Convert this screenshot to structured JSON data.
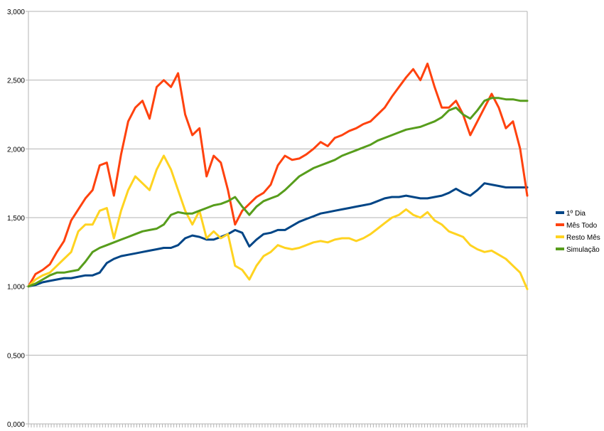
{
  "chart_data": {
    "type": "line",
    "title": "",
    "xlabel": "",
    "ylabel": "",
    "ylim": [
      0,
      3
    ],
    "yticks": [
      "0,000",
      "0,500",
      "1,000",
      "1,500",
      "2,000",
      "2,500",
      "3,000"
    ],
    "ytick_values": [
      0,
      0.5,
      1,
      1.5,
      2,
      2.5,
      3
    ],
    "grid": true,
    "legend_position": "right",
    "x": [
      0,
      10,
      20,
      30,
      40,
      50,
      60,
      70,
      80,
      90,
      100,
      110,
      120,
      130,
      140,
      150,
      160,
      170,
      180,
      190,
      200,
      210,
      220,
      230,
      240,
      250,
      260,
      270,
      280,
      290,
      300,
      310,
      320,
      330,
      340,
      350,
      360,
      370,
      380,
      390,
      400,
      410,
      420,
      430,
      440,
      450,
      460,
      470,
      480,
      490,
      500,
      510,
      520,
      530,
      540,
      550,
      560,
      570,
      580,
      590,
      600,
      610,
      620,
      630,
      640,
      650,
      660,
      670,
      680,
      690,
      700
    ],
    "series": [
      {
        "name": "1º Dia",
        "color": "#004586",
        "values": [
          1.0,
          1.01,
          1.03,
          1.04,
          1.05,
          1.06,
          1.06,
          1.07,
          1.08,
          1.08,
          1.1,
          1.17,
          1.2,
          1.22,
          1.23,
          1.24,
          1.25,
          1.26,
          1.27,
          1.28,
          1.28,
          1.3,
          1.35,
          1.37,
          1.36,
          1.34,
          1.34,
          1.36,
          1.38,
          1.41,
          1.39,
          1.29,
          1.34,
          1.38,
          1.39,
          1.41,
          1.41,
          1.44,
          1.47,
          1.49,
          1.51,
          1.53,
          1.54,
          1.55,
          1.56,
          1.57,
          1.58,
          1.59,
          1.6,
          1.62,
          1.64,
          1.65,
          1.65,
          1.66,
          1.65,
          1.64,
          1.64,
          1.65,
          1.66,
          1.68,
          1.71,
          1.68,
          1.66,
          1.7,
          1.75,
          1.74,
          1.73,
          1.72,
          1.72,
          1.72,
          1.72
        ]
      },
      {
        "name": "Mês Todo",
        "color": "#ff420e",
        "values": [
          1.0,
          1.09,
          1.12,
          1.16,
          1.25,
          1.33,
          1.48,
          1.56,
          1.64,
          1.7,
          1.88,
          1.9,
          1.66,
          1.96,
          2.2,
          2.3,
          2.35,
          2.22,
          2.45,
          2.5,
          2.45,
          2.55,
          2.25,
          2.1,
          2.15,
          1.8,
          1.95,
          1.9,
          1.7,
          1.45,
          1.55,
          1.6,
          1.65,
          1.68,
          1.74,
          1.88,
          1.95,
          1.92,
          1.93,
          1.96,
          2.0,
          2.05,
          2.02,
          2.08,
          2.1,
          2.13,
          2.15,
          2.18,
          2.2,
          2.25,
          2.3,
          2.38,
          2.45,
          2.52,
          2.58,
          2.5,
          2.62,
          2.45,
          2.3,
          2.3,
          2.35,
          2.25,
          2.1,
          2.2,
          2.3,
          2.4,
          2.3,
          2.15,
          2.2,
          2.0,
          1.66
        ]
      },
      {
        "name": "Resto Mês",
        "color": "#ffd320",
        "values": [
          1.0,
          1.05,
          1.08,
          1.1,
          1.15,
          1.2,
          1.25,
          1.4,
          1.45,
          1.45,
          1.55,
          1.57,
          1.35,
          1.55,
          1.7,
          1.8,
          1.75,
          1.7,
          1.85,
          1.95,
          1.85,
          1.7,
          1.55,
          1.45,
          1.55,
          1.35,
          1.4,
          1.35,
          1.38,
          1.15,
          1.12,
          1.05,
          1.15,
          1.22,
          1.25,
          1.3,
          1.28,
          1.27,
          1.28,
          1.3,
          1.32,
          1.33,
          1.32,
          1.34,
          1.35,
          1.35,
          1.33,
          1.35,
          1.38,
          1.42,
          1.46,
          1.5,
          1.52,
          1.56,
          1.52,
          1.5,
          1.54,
          1.48,
          1.45,
          1.4,
          1.38,
          1.36,
          1.3,
          1.27,
          1.25,
          1.26,
          1.23,
          1.2,
          1.15,
          1.1,
          0.98
        ]
      },
      {
        "name": "Simulação",
        "color": "#579d1c",
        "values": [
          1.0,
          1.02,
          1.05,
          1.08,
          1.1,
          1.1,
          1.11,
          1.12,
          1.18,
          1.25,
          1.28,
          1.3,
          1.32,
          1.34,
          1.36,
          1.38,
          1.4,
          1.41,
          1.42,
          1.45,
          1.52,
          1.54,
          1.53,
          1.53,
          1.55,
          1.57,
          1.59,
          1.6,
          1.62,
          1.65,
          1.58,
          1.52,
          1.58,
          1.62,
          1.64,
          1.66,
          1.7,
          1.75,
          1.8,
          1.83,
          1.86,
          1.88,
          1.9,
          1.92,
          1.95,
          1.97,
          1.99,
          2.01,
          2.03,
          2.06,
          2.08,
          2.1,
          2.12,
          2.14,
          2.15,
          2.16,
          2.18,
          2.2,
          2.23,
          2.28,
          2.3,
          2.25,
          2.22,
          2.28,
          2.35,
          2.37,
          2.37,
          2.36,
          2.36,
          2.35,
          2.35
        ]
      }
    ]
  }
}
